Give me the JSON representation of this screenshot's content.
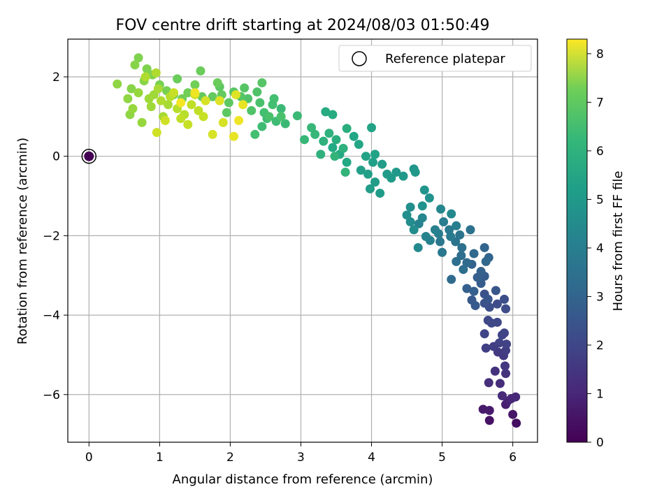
{
  "chart_data": {
    "type": "scatter",
    "title": "FOV centre drift starting at 2024/08/03 01:50:49",
    "xlabel": "Angular distance from reference (arcmin)",
    "ylabel": "Rotation from reference (arcmin)",
    "xlim": [
      -0.3,
      6.35
    ],
    "ylim": [
      -7.2,
      2.95
    ],
    "xticks": [
      0,
      1,
      2,
      3,
      4,
      5,
      6
    ],
    "yticks": [
      -6,
      -4,
      -2,
      0,
      2
    ],
    "grid": true,
    "legend": {
      "placement": "top-right",
      "entries": [
        "Reference platepar"
      ]
    },
    "colorbar": {
      "label": "Hours from first FF file",
      "range": [
        0,
        8.3
      ],
      "ticks": [
        0,
        1,
        2,
        3,
        4,
        5,
        6,
        7,
        8
      ],
      "colormap": "viridis"
    },
    "reference_point": {
      "x": 0,
      "y": 0,
      "hours": 0
    },
    "points": [
      [
        6.05,
        -6.72,
        0.3
      ],
      [
        5.67,
        -6.65,
        0.4
      ],
      [
        6.0,
        -6.5,
        0.5
      ],
      [
        5.58,
        -6.37,
        0.6
      ],
      [
        5.67,
        -6.4,
        0.6
      ],
      [
        5.9,
        -6.25,
        0.7
      ],
      [
        5.93,
        -6.16,
        0.8
      ],
      [
        5.98,
        -6.1,
        0.9
      ],
      [
        6.04,
        -6.06,
        0.9
      ],
      [
        5.85,
        -6.03,
        1.0
      ],
      [
        5.82,
        -5.72,
        1.1
      ],
      [
        5.66,
        -5.7,
        1.1
      ],
      [
        5.9,
        -5.47,
        1.2
      ],
      [
        5.75,
        -5.41,
        1.2
      ],
      [
        5.89,
        -5.28,
        1.3
      ],
      [
        5.87,
        -5.02,
        1.4
      ],
      [
        5.79,
        -4.93,
        1.4
      ],
      [
        5.9,
        -4.89,
        1.5
      ],
      [
        5.62,
        -4.83,
        1.5
      ],
      [
        5.73,
        -4.79,
        1.5
      ],
      [
        5.81,
        -4.7,
        1.6
      ],
      [
        5.91,
        -4.73,
        1.6
      ],
      [
        5.85,
        -4.5,
        1.7
      ],
      [
        5.6,
        -4.47,
        1.7
      ],
      [
        5.88,
        -4.45,
        1.7
      ],
      [
        5.78,
        -4.18,
        1.8
      ],
      [
        5.7,
        -4.2,
        1.8
      ],
      [
        5.65,
        -4.13,
        1.8
      ],
      [
        5.9,
        -3.84,
        1.9
      ],
      [
        5.78,
        -3.72,
        1.9
      ],
      [
        5.88,
        -3.6,
        2.0
      ],
      [
        5.67,
        -3.8,
        2.0
      ],
      [
        5.6,
        -3.7,
        2.1
      ],
      [
        5.6,
        -3.47,
        2.1
      ],
      [
        5.76,
        -3.38,
        2.2
      ],
      [
        5.65,
        -3.6,
        2.2
      ],
      [
        5.47,
        -3.76,
        2.3
      ],
      [
        5.42,
        -3.62,
        2.3
      ],
      [
        5.55,
        -3.2,
        2.4
      ],
      [
        5.6,
        -3.02,
        2.4
      ],
      [
        5.5,
        -3.05,
        2.5
      ],
      [
        5.35,
        -3.33,
        2.5
      ],
      [
        5.45,
        -3.4,
        2.5
      ],
      [
        5.55,
        -2.9,
        2.6
      ],
      [
        5.42,
        -2.72,
        2.6
      ],
      [
        5.66,
        -2.55,
        2.7
      ],
      [
        5.6,
        -2.3,
        2.7
      ],
      [
        5.45,
        -2.45,
        2.8
      ],
      [
        5.62,
        -2.65,
        2.8
      ],
      [
        5.35,
        -2.68,
        2.9
      ],
      [
        5.13,
        -3.1,
        2.9
      ],
      [
        5.3,
        -2.85,
        3.0
      ],
      [
        5.2,
        -2.65,
        3.0
      ],
      [
        5.27,
        -2.5,
        3.0
      ],
      [
        5.28,
        -2.3,
        3.1
      ],
      [
        5.4,
        -1.85,
        3.1
      ],
      [
        5.25,
        -1.98,
        3.2
      ],
      [
        5.19,
        -2.15,
        3.2
      ],
      [
        5.0,
        -2.42,
        3.3
      ],
      [
        4.97,
        -2.15,
        3.3
      ],
      [
        5.12,
        -2.02,
        3.4
      ],
      [
        5.1,
        -1.85,
        3.4
      ],
      [
        5.2,
        -1.75,
        3.5
      ],
      [
        5.02,
        -1.65,
        3.5
      ],
      [
        4.95,
        -1.95,
        3.5
      ],
      [
        4.83,
        -2.12,
        3.6
      ],
      [
        4.9,
        -1.85,
        3.6
      ],
      [
        4.77,
        -2.02,
        3.7
      ],
      [
        4.67,
        -1.7,
        3.7
      ],
      [
        4.72,
        -1.55,
        3.8
      ],
      [
        4.98,
        -1.33,
        3.8
      ],
      [
        5.13,
        -1.45,
        3.9
      ],
      [
        4.66,
        -2.3,
        3.9
      ],
      [
        4.6,
        -1.85,
        4.0
      ],
      [
        4.55,
        -1.65,
        4.0
      ],
      [
        4.5,
        -1.48,
        4.1
      ],
      [
        4.55,
        -1.28,
        4.1
      ],
      [
        4.72,
        -1.25,
        4.2
      ],
      [
        4.82,
        -1.05,
        4.2
      ],
      [
        4.75,
        -0.85,
        4.3
      ],
      [
        4.6,
        -0.32,
        4.3
      ],
      [
        4.62,
        -0.4,
        4.4
      ],
      [
        4.45,
        -0.5,
        4.4
      ],
      [
        4.35,
        -0.4,
        4.4
      ],
      [
        4.28,
        -0.55,
        4.5
      ],
      [
        4.22,
        -0.45,
        4.5
      ],
      [
        4.12,
        -0.93,
        4.5
      ],
      [
        3.98,
        -0.82,
        4.6
      ],
      [
        4.05,
        -0.65,
        4.6
      ],
      [
        4.15,
        -0.2,
        4.6
      ],
      [
        4.02,
        -0.15,
        4.7
      ],
      [
        3.95,
        -0.45,
        4.7
      ],
      [
        3.85,
        -0.35,
        4.7
      ],
      [
        3.92,
        0.0,
        4.8
      ],
      [
        4.05,
        0.05,
        4.8
      ],
      [
        4.0,
        0.72,
        4.8
      ],
      [
        3.82,
        0.3,
        4.9
      ],
      [
        3.75,
        0.5,
        4.9
      ],
      [
        3.65,
        -0.15,
        5.0
      ],
      [
        3.55,
        0.05,
        5.0
      ],
      [
        3.45,
        0.22,
        5.0
      ],
      [
        3.35,
        1.12,
        5.1
      ],
      [
        3.45,
        1.05,
        5.1
      ],
      [
        3.65,
        0.7,
        5.2
      ],
      [
        3.5,
        0.42,
        5.2
      ],
      [
        3.4,
        0.58,
        5.3
      ],
      [
        3.32,
        0.38,
        5.3
      ],
      [
        3.28,
        0.05,
        5.3
      ],
      [
        3.6,
        0.2,
        5.3
      ],
      [
        3.48,
        0.0,
        5.4
      ],
      [
        3.63,
        -0.4,
        5.4
      ],
      [
        3.15,
        0.72,
        5.5
      ],
      [
        3.05,
        0.42,
        5.5
      ],
      [
        3.2,
        0.55,
        5.5
      ],
      [
        2.95,
        1.02,
        5.6
      ],
      [
        2.78,
        0.82,
        5.6
      ],
      [
        2.72,
        1.2,
        5.6
      ],
      [
        2.65,
        0.88,
        5.7
      ],
      [
        2.52,
        0.95,
        5.7
      ],
      [
        2.45,
        0.75,
        5.7
      ],
      [
        2.35,
        0.55,
        5.8
      ],
      [
        2.48,
        1.1,
        5.8
      ],
      [
        2.62,
        1.45,
        5.8
      ],
      [
        2.6,
        1.3,
        5.8
      ],
      [
        2.72,
        1.0,
        5.9
      ],
      [
        2.55,
        1.0,
        5.9
      ],
      [
        2.42,
        1.35,
        5.9
      ],
      [
        2.3,
        1.15,
        6.0
      ],
      [
        2.25,
        1.45,
        6.0
      ],
      [
        2.38,
        1.62,
        6.0
      ],
      [
        2.45,
        1.85,
        6.1
      ],
      [
        2.2,
        1.72,
        6.1
      ],
      [
        2.15,
        1.5,
        6.1
      ],
      [
        2.05,
        1.62,
        6.1
      ],
      [
        1.98,
        1.35,
        6.2
      ],
      [
        1.95,
        1.1,
        6.2
      ],
      [
        1.85,
        1.75,
        6.2
      ],
      [
        1.75,
        1.5,
        6.3
      ],
      [
        1.88,
        1.55,
        6.3
      ],
      [
        1.6,
        1.5,
        6.3
      ],
      [
        1.58,
        2.15,
        6.4
      ],
      [
        1.82,
        1.85,
        6.4
      ],
      [
        1.25,
        1.95,
        6.4
      ],
      [
        1.4,
        1.6,
        6.5
      ],
      [
        1.5,
        1.8,
        6.5
      ],
      [
        1.32,
        1.45,
        6.5
      ],
      [
        1.2,
        1.55,
        6.6
      ],
      [
        1.1,
        1.65,
        6.6
      ],
      [
        1.0,
        1.8,
        6.6
      ],
      [
        0.9,
        2.05,
        6.7
      ],
      [
        0.82,
        2.2,
        6.7
      ],
      [
        0.7,
        2.48,
        6.7
      ],
      [
        0.78,
        1.9,
        6.8
      ],
      [
        0.65,
        2.3,
        6.8
      ],
      [
        0.6,
        1.7,
        6.8
      ],
      [
        0.55,
        1.45,
        6.9
      ],
      [
        0.4,
        1.82,
        6.9
      ],
      [
        0.58,
        1.05,
        6.9
      ],
      [
        0.75,
        0.85,
        7.0
      ],
      [
        0.62,
        1.2,
        7.0
      ],
      [
        0.7,
        1.6,
        7.0
      ],
      [
        0.85,
        1.45,
        7.1
      ],
      [
        0.92,
        1.55,
        7.1
      ],
      [
        0.88,
        1.25,
        7.1
      ],
      [
        1.05,
        1.0,
        7.2
      ],
      [
        1.12,
        1.3,
        7.2
      ],
      [
        0.98,
        1.7,
        7.2
      ],
      [
        0.8,
        2.0,
        7.3
      ],
      [
        0.95,
        2.1,
        7.3
      ],
      [
        1.02,
        1.4,
        7.3
      ],
      [
        1.15,
        1.5,
        7.4
      ],
      [
        1.25,
        1.2,
        7.4
      ],
      [
        1.35,
        1.05,
        7.4
      ],
      [
        1.3,
        0.95,
        7.5
      ],
      [
        1.45,
        1.3,
        7.5
      ],
      [
        1.55,
        1.15,
        7.5
      ],
      [
        1.62,
        1.0,
        7.6
      ],
      [
        1.4,
        0.8,
        7.6
      ],
      [
        1.2,
        1.6,
        7.6
      ],
      [
        1.08,
        0.9,
        7.7
      ],
      [
        0.96,
        0.6,
        7.7
      ],
      [
        1.5,
        1.55,
        7.7
      ],
      [
        1.65,
        1.4,
        7.8
      ],
      [
        1.75,
        0.55,
        7.8
      ],
      [
        1.9,
        0.85,
        7.8
      ],
      [
        1.85,
        1.4,
        7.9
      ],
      [
        2.08,
        1.55,
        7.9
      ],
      [
        2.18,
        1.3,
        8.0
      ],
      [
        2.05,
        0.5,
        8.0
      ],
      [
        2.12,
        0.9,
        8.1
      ],
      [
        1.5,
        1.6,
        8.1
      ],
      [
        1.3,
        1.35,
        8.2
      ]
    ]
  }
}
